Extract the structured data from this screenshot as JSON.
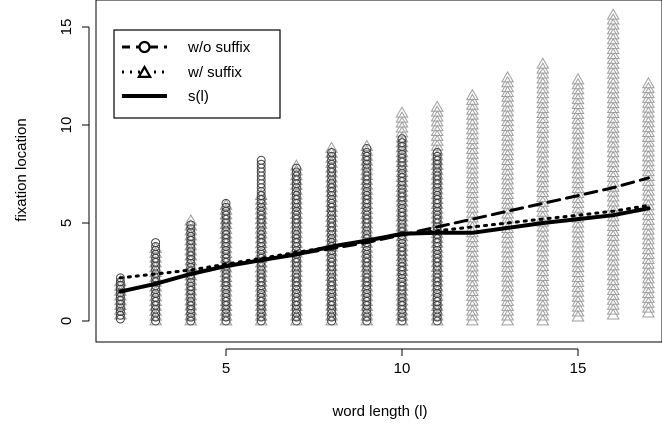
{
  "chart_data": {
    "type": "scatter",
    "title": "",
    "xlabel": "word length (l)",
    "ylabel": "fixation location",
    "xlim": [
      2,
      17
    ],
    "ylim": [
      0,
      15.5
    ],
    "x_ticks": [
      5,
      10,
      15
    ],
    "y_ticks": [
      0,
      5,
      10,
      15
    ],
    "grid": false,
    "legend_position": "top-left",
    "legend": [
      {
        "label": "w/o suffix",
        "line": "dashed",
        "marker": "circle"
      },
      {
        "label": "w/ suffix",
        "line": "dotted",
        "marker": "triangle"
      },
      {
        "label": "s(l)",
        "line": "solid",
        "marker": "none"
      }
    ],
    "colors": {
      "without_suffix": "#404040",
      "with_suffix": "#9e9e9e",
      "line": "#000000"
    },
    "scatter": {
      "without_suffix": {
        "marker": "circle",
        "columns": [
          {
            "x": 2,
            "min": 0.1,
            "max": 2.2
          },
          {
            "x": 3,
            "min": 0.0,
            "max": 4.0
          },
          {
            "x": 4,
            "min": 0.0,
            "max": 4.9
          },
          {
            "x": 5,
            "min": 0.0,
            "max": 6.0
          },
          {
            "x": 6,
            "min": 0.0,
            "max": 8.2
          },
          {
            "x": 7,
            "min": 0.0,
            "max": 7.8
          },
          {
            "x": 8,
            "min": 0.0,
            "max": 8.6
          },
          {
            "x": 9,
            "min": 0.0,
            "max": 8.8
          },
          {
            "x": 10,
            "min": 0.0,
            "max": 9.3
          },
          {
            "x": 11,
            "min": 0.0,
            "max": 8.6
          }
        ]
      },
      "with_suffix": {
        "marker": "triangle",
        "columns": [
          {
            "x": 2,
            "min": 0.3,
            "max": 2.0
          },
          {
            "x": 3,
            "min": 0.0,
            "max": 3.7
          },
          {
            "x": 4,
            "min": 0.0,
            "max": 5.1
          },
          {
            "x": 5,
            "min": 0.0,
            "max": 5.9
          },
          {
            "x": 6,
            "min": 0.0,
            "max": 6.4
          },
          {
            "x": 7,
            "min": 0.0,
            "max": 7.9
          },
          {
            "x": 8,
            "min": 0.0,
            "max": 8.8
          },
          {
            "x": 9,
            "min": 0.0,
            "max": 8.9
          },
          {
            "x": 10,
            "min": 0.0,
            "max": 10.6
          },
          {
            "x": 11,
            "min": 0.0,
            "max": 10.9
          },
          {
            "x": 12,
            "min": 0.0,
            "max": 11.5
          },
          {
            "x": 13,
            "min": 0.0,
            "max": 12.4
          },
          {
            "x": 14,
            "min": 0.0,
            "max": 13.1
          },
          {
            "x": 15,
            "min": 0.2,
            "max": 12.3
          },
          {
            "x": 16,
            "min": 0.3,
            "max": 15.6
          },
          {
            "x": 17,
            "min": 0.4,
            "max": 12.1
          }
        ]
      }
    },
    "series": [
      {
        "name": "w/o suffix",
        "style": "dashed",
        "x": [
          2,
          3,
          4,
          5,
          6,
          7,
          8,
          9,
          10,
          11,
          12,
          13,
          14,
          15,
          16,
          17
        ],
        "y": [
          1.5,
          1.9,
          2.4,
          2.8,
          3.1,
          3.4,
          3.7,
          4.0,
          4.4,
          4.8,
          5.2,
          5.6,
          6.0,
          6.4,
          6.8,
          7.3
        ]
      },
      {
        "name": "w/ suffix",
        "style": "dotted",
        "x": [
          2,
          3,
          4,
          5,
          6,
          7,
          8,
          9,
          10,
          11,
          12,
          13,
          14,
          15,
          16,
          17
        ],
        "y": [
          2.2,
          2.4,
          2.6,
          2.9,
          3.2,
          3.5,
          3.8,
          4.1,
          4.4,
          4.6,
          4.8,
          5.0,
          5.2,
          5.4,
          5.6,
          5.9
        ]
      },
      {
        "name": "s(l)",
        "style": "solid",
        "x": [
          2,
          3,
          4,
          5,
          6,
          7,
          8,
          9,
          10,
          11,
          12,
          13,
          14,
          15,
          16,
          17
        ],
        "y": [
          1.5,
          1.9,
          2.4,
          2.8,
          3.1,
          3.4,
          3.8,
          4.1,
          4.45,
          4.5,
          4.5,
          4.75,
          5.0,
          5.2,
          5.4,
          5.75
        ]
      }
    ]
  }
}
